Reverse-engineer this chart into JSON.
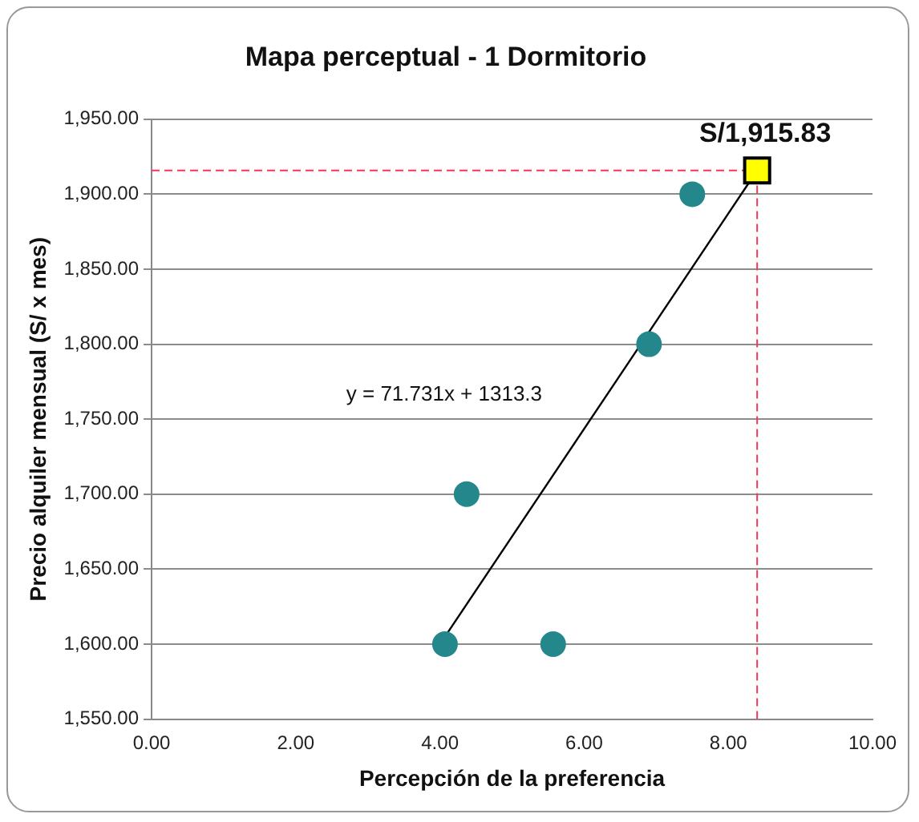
{
  "chart_data": {
    "type": "scatter",
    "title": "Mapa perceptual - 1 Dormitorio",
    "xlabel": "Percepción de la preferencia",
    "ylabel": "Precio alquiler mensual (S/ x mes)",
    "series": [
      {
        "color": "#23878c",
        "marker": "circle",
        "x": [
          4.07,
          4.37,
          5.57,
          6.9,
          7.5
        ],
        "values": [
          1600,
          1700,
          1600,
          1800,
          1900
        ]
      },
      {
        "type": "line",
        "color": "#000000",
        "marker": "none",
        "line_style": "solid",
        "x": [
          4.07,
          8.4
        ],
        "values": [
          1605,
          1915.83
        ]
      },
      {
        "color": "#ffff00",
        "marker": "square",
        "x": [
          8.4
        ],
        "values": [
          1915.83
        ]
      }
    ],
    "xlim": [
      0,
      10
    ],
    "ylim": [
      1550,
      1950
    ],
    "xticks": [
      {
        "value": 0,
        "label": "0.00"
      },
      {
        "value": 2,
        "label": "2.00"
      },
      {
        "value": 4,
        "label": "4.00"
      },
      {
        "value": 6,
        "label": "6.00"
      },
      {
        "value": 8,
        "label": "8.00"
      },
      {
        "value": 10,
        "label": "10.00"
      }
    ],
    "yticks": [
      {
        "value": 1550,
        "label": "1,550.00"
      },
      {
        "value": 1600,
        "label": "1,600.00"
      },
      {
        "value": 1650,
        "label": "1,650.00"
      },
      {
        "value": 1700,
        "label": "1,700.00"
      },
      {
        "value": 1750,
        "label": "1,750.00"
      },
      {
        "value": 1800,
        "label": "1,800.00"
      },
      {
        "value": 1850,
        "label": "1,850.00"
      },
      {
        "value": 1900,
        "label": "1,900.00"
      },
      {
        "value": 1950,
        "label": "1,950.00"
      }
    ],
    "ref_lines": [
      {
        "axis": "y",
        "value": 1915.83,
        "color": "#ff3355",
        "line_style": "dashed"
      },
      {
        "axis": "x",
        "value": 8.4,
        "color": "#ff3355",
        "line_style": "dashed"
      }
    ],
    "annotations": [
      "y = 71.731x + 1313.3",
      {
        "text": "S/1,915.83",
        "x": 8.4,
        "y": 1915.83
      }
    ],
    "grid": "y",
    "legend": false
  }
}
